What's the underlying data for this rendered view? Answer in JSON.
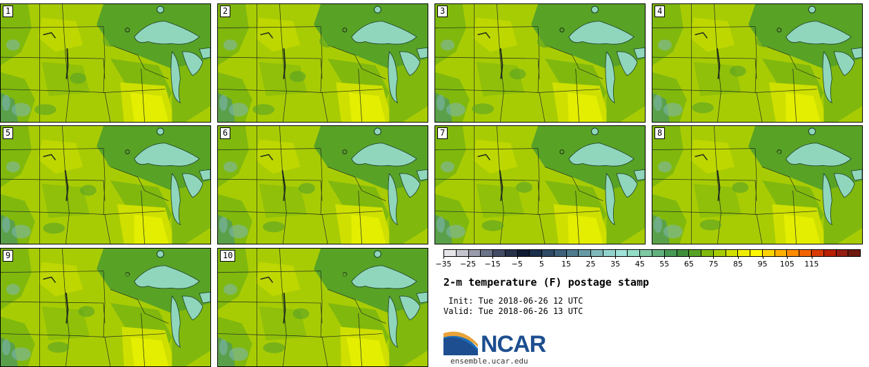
{
  "members": [
    {
      "label": "1"
    },
    {
      "label": "2"
    },
    {
      "label": "3"
    },
    {
      "label": "4"
    },
    {
      "label": "5"
    },
    {
      "label": "6"
    },
    {
      "label": "7"
    },
    {
      "label": "8"
    },
    {
      "label": "9"
    },
    {
      "label": "10"
    }
  ],
  "colorbar": {
    "colors": [
      "#e6e6ea",
      "#c2c3cc",
      "#9a9cab",
      "#6b7388",
      "#444c65",
      "#26304a",
      "#0f1b33",
      "#1c2f4c",
      "#2f4a66",
      "#3d617b",
      "#4f7b8e",
      "#679aa4",
      "#7fb8b8",
      "#92d2cc",
      "#9fe2d8",
      "#93dcc5",
      "#7ec8a3",
      "#62b07e",
      "#469a56",
      "#3f8f3a",
      "#58a226",
      "#80b80e",
      "#a8cc04",
      "#cfe000",
      "#f0ec00",
      "#fff700",
      "#ffd300",
      "#ffb000",
      "#ff8c00",
      "#f06400",
      "#d83c00",
      "#b82000",
      "#951c10",
      "#6e1a10"
    ],
    "ticks": [
      "−35",
      "−25",
      "−15",
      "−5",
      "5",
      "15",
      "25",
      "35",
      "45",
      "55",
      "65",
      "75",
      "85",
      "95",
      "105",
      "115"
    ]
  },
  "title": "2-m temperature (F) postage stamp",
  "init": " Init: Tue 2018-06-26 12 UTC",
  "valid": "Valid: Tue 2018-06-26 13 UTC",
  "logo": {
    "text": "NCAR",
    "color": "#1d4e8f"
  },
  "website": "ensemble.ucar.edu",
  "palette": {
    "lake": "#8fd6bc",
    "dark_green": "#58a226",
    "mid_green": "#80b80e",
    "light_green": "#a8cc04",
    "yellow_green": "#cfe000",
    "yellow": "#e3ee00"
  }
}
